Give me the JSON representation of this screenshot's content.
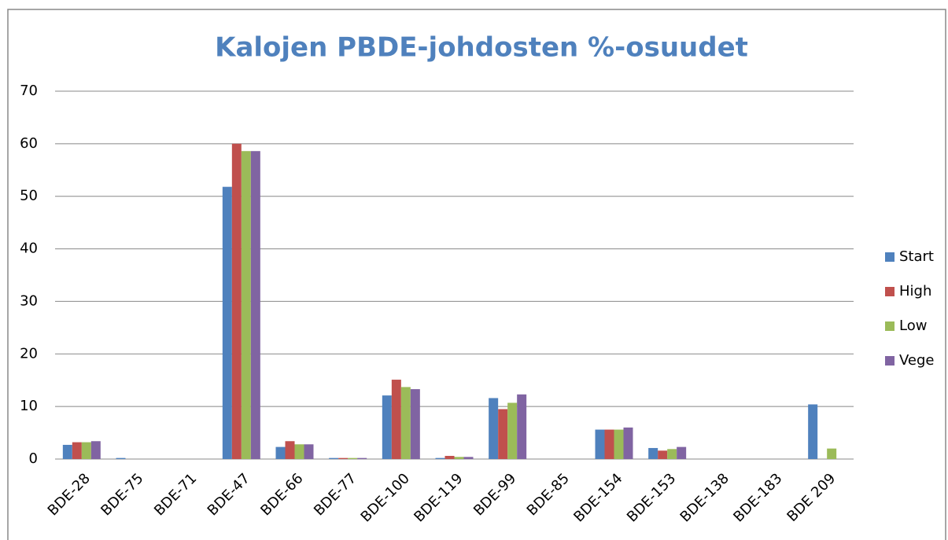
{
  "chart_data": {
    "type": "bar",
    "title": "Kalojen PBDE-johdosten %-osuudet",
    "categories": [
      "BDE-28",
      "BDE-75",
      "BDE-71",
      "BDE-47",
      "BDE-66",
      "BDE-77",
      "BDE-100",
      "BDE-119",
      "BDE-99",
      "BDE-85",
      "BDE-154",
      "BDE-153",
      "BDE-138",
      "BDE-183",
      "BDE 209"
    ],
    "series": [
      {
        "name": "Start",
        "color": "#4f81bd",
        "values": [
          2.7,
          0.2,
          0,
          51.8,
          2.3,
          0.2,
          12.1,
          0.2,
          11.6,
          0,
          5.6,
          2.1,
          0,
          0,
          10.4
        ]
      },
      {
        "name": "High",
        "color": "#c0504d",
        "values": [
          3.2,
          0,
          0,
          60,
          3.4,
          0.2,
          15.1,
          0.6,
          9.5,
          0,
          5.6,
          1.6,
          0,
          0,
          0
        ]
      },
      {
        "name": "Low",
        "color": "#9bbb59",
        "values": [
          3.2,
          0,
          0,
          58.6,
          2.8,
          0.2,
          13.7,
          0.4,
          10.7,
          0,
          5.6,
          1.9,
          0,
          0,
          2.0
        ]
      },
      {
        "name": "Vege",
        "color": "#8064a2",
        "values": [
          3.4,
          0,
          0,
          58.6,
          2.8,
          0.2,
          13.3,
          0.4,
          12.3,
          0,
          6.0,
          2.3,
          0,
          0,
          0
        ]
      }
    ],
    "ylim": [
      0,
      70
    ],
    "yticks": [
      0,
      10,
      20,
      30,
      40,
      50,
      60,
      70
    ],
    "grid": true,
    "legend": "right"
  }
}
